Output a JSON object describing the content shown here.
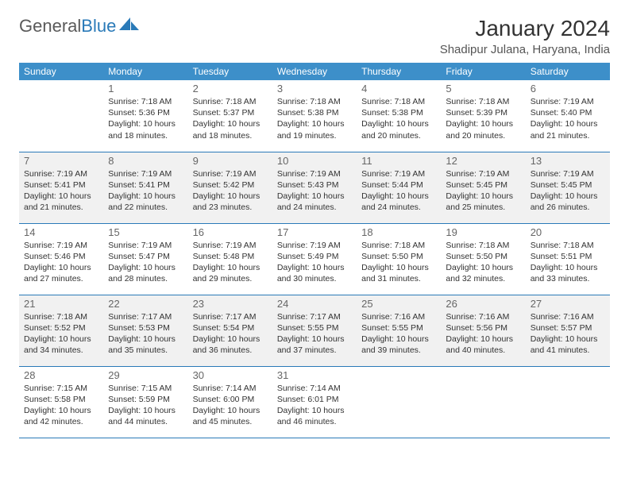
{
  "logo": {
    "word1": "General",
    "word2": "Blue"
  },
  "month_title": "January 2024",
  "location": "Shadipur Julana, Haryana, India",
  "colors": {
    "header_bg": "#3d8fc9",
    "rule": "#2a7ab8",
    "shaded_bg": "#f1f1f1",
    "text": "#333333",
    "daynum": "#666666"
  },
  "day_names": [
    "Sunday",
    "Monday",
    "Tuesday",
    "Wednesday",
    "Thursday",
    "Friday",
    "Saturday"
  ],
  "weeks": [
    {
      "shaded": false,
      "days": [
        {
          "n": "",
          "sr": "",
          "ss": "",
          "dl": ""
        },
        {
          "n": "1",
          "sr": "Sunrise: 7:18 AM",
          "ss": "Sunset: 5:36 PM",
          "dl": "Daylight: 10 hours and 18 minutes."
        },
        {
          "n": "2",
          "sr": "Sunrise: 7:18 AM",
          "ss": "Sunset: 5:37 PM",
          "dl": "Daylight: 10 hours and 18 minutes."
        },
        {
          "n": "3",
          "sr": "Sunrise: 7:18 AM",
          "ss": "Sunset: 5:38 PM",
          "dl": "Daylight: 10 hours and 19 minutes."
        },
        {
          "n": "4",
          "sr": "Sunrise: 7:18 AM",
          "ss": "Sunset: 5:38 PM",
          "dl": "Daylight: 10 hours and 20 minutes."
        },
        {
          "n": "5",
          "sr": "Sunrise: 7:18 AM",
          "ss": "Sunset: 5:39 PM",
          "dl": "Daylight: 10 hours and 20 minutes."
        },
        {
          "n": "6",
          "sr": "Sunrise: 7:19 AM",
          "ss": "Sunset: 5:40 PM",
          "dl": "Daylight: 10 hours and 21 minutes."
        }
      ]
    },
    {
      "shaded": true,
      "days": [
        {
          "n": "7",
          "sr": "Sunrise: 7:19 AM",
          "ss": "Sunset: 5:41 PM",
          "dl": "Daylight: 10 hours and 21 minutes."
        },
        {
          "n": "8",
          "sr": "Sunrise: 7:19 AM",
          "ss": "Sunset: 5:41 PM",
          "dl": "Daylight: 10 hours and 22 minutes."
        },
        {
          "n": "9",
          "sr": "Sunrise: 7:19 AM",
          "ss": "Sunset: 5:42 PM",
          "dl": "Daylight: 10 hours and 23 minutes."
        },
        {
          "n": "10",
          "sr": "Sunrise: 7:19 AM",
          "ss": "Sunset: 5:43 PM",
          "dl": "Daylight: 10 hours and 24 minutes."
        },
        {
          "n": "11",
          "sr": "Sunrise: 7:19 AM",
          "ss": "Sunset: 5:44 PM",
          "dl": "Daylight: 10 hours and 24 minutes."
        },
        {
          "n": "12",
          "sr": "Sunrise: 7:19 AM",
          "ss": "Sunset: 5:45 PM",
          "dl": "Daylight: 10 hours and 25 minutes."
        },
        {
          "n": "13",
          "sr": "Sunrise: 7:19 AM",
          "ss": "Sunset: 5:45 PM",
          "dl": "Daylight: 10 hours and 26 minutes."
        }
      ]
    },
    {
      "shaded": false,
      "days": [
        {
          "n": "14",
          "sr": "Sunrise: 7:19 AM",
          "ss": "Sunset: 5:46 PM",
          "dl": "Daylight: 10 hours and 27 minutes."
        },
        {
          "n": "15",
          "sr": "Sunrise: 7:19 AM",
          "ss": "Sunset: 5:47 PM",
          "dl": "Daylight: 10 hours and 28 minutes."
        },
        {
          "n": "16",
          "sr": "Sunrise: 7:19 AM",
          "ss": "Sunset: 5:48 PM",
          "dl": "Daylight: 10 hours and 29 minutes."
        },
        {
          "n": "17",
          "sr": "Sunrise: 7:19 AM",
          "ss": "Sunset: 5:49 PM",
          "dl": "Daylight: 10 hours and 30 minutes."
        },
        {
          "n": "18",
          "sr": "Sunrise: 7:18 AM",
          "ss": "Sunset: 5:50 PM",
          "dl": "Daylight: 10 hours and 31 minutes."
        },
        {
          "n": "19",
          "sr": "Sunrise: 7:18 AM",
          "ss": "Sunset: 5:50 PM",
          "dl": "Daylight: 10 hours and 32 minutes."
        },
        {
          "n": "20",
          "sr": "Sunrise: 7:18 AM",
          "ss": "Sunset: 5:51 PM",
          "dl": "Daylight: 10 hours and 33 minutes."
        }
      ]
    },
    {
      "shaded": true,
      "days": [
        {
          "n": "21",
          "sr": "Sunrise: 7:18 AM",
          "ss": "Sunset: 5:52 PM",
          "dl": "Daylight: 10 hours and 34 minutes."
        },
        {
          "n": "22",
          "sr": "Sunrise: 7:17 AM",
          "ss": "Sunset: 5:53 PM",
          "dl": "Daylight: 10 hours and 35 minutes."
        },
        {
          "n": "23",
          "sr": "Sunrise: 7:17 AM",
          "ss": "Sunset: 5:54 PM",
          "dl": "Daylight: 10 hours and 36 minutes."
        },
        {
          "n": "24",
          "sr": "Sunrise: 7:17 AM",
          "ss": "Sunset: 5:55 PM",
          "dl": "Daylight: 10 hours and 37 minutes."
        },
        {
          "n": "25",
          "sr": "Sunrise: 7:16 AM",
          "ss": "Sunset: 5:55 PM",
          "dl": "Daylight: 10 hours and 39 minutes."
        },
        {
          "n": "26",
          "sr": "Sunrise: 7:16 AM",
          "ss": "Sunset: 5:56 PM",
          "dl": "Daylight: 10 hours and 40 minutes."
        },
        {
          "n": "27",
          "sr": "Sunrise: 7:16 AM",
          "ss": "Sunset: 5:57 PM",
          "dl": "Daylight: 10 hours and 41 minutes."
        }
      ]
    },
    {
      "shaded": false,
      "days": [
        {
          "n": "28",
          "sr": "Sunrise: 7:15 AM",
          "ss": "Sunset: 5:58 PM",
          "dl": "Daylight: 10 hours and 42 minutes."
        },
        {
          "n": "29",
          "sr": "Sunrise: 7:15 AM",
          "ss": "Sunset: 5:59 PM",
          "dl": "Daylight: 10 hours and 44 minutes."
        },
        {
          "n": "30",
          "sr": "Sunrise: 7:14 AM",
          "ss": "Sunset: 6:00 PM",
          "dl": "Daylight: 10 hours and 45 minutes."
        },
        {
          "n": "31",
          "sr": "Sunrise: 7:14 AM",
          "ss": "Sunset: 6:01 PM",
          "dl": "Daylight: 10 hours and 46 minutes."
        },
        {
          "n": "",
          "sr": "",
          "ss": "",
          "dl": ""
        },
        {
          "n": "",
          "sr": "",
          "ss": "",
          "dl": ""
        },
        {
          "n": "",
          "sr": "",
          "ss": "",
          "dl": ""
        }
      ]
    }
  ]
}
